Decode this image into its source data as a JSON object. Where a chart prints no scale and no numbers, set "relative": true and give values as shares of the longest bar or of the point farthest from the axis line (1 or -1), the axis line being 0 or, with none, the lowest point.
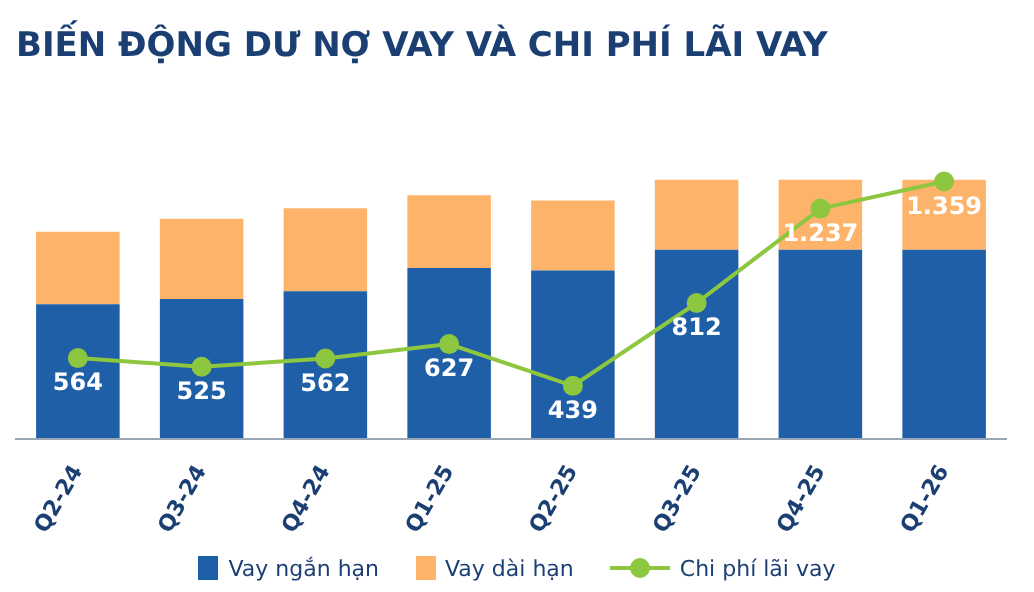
{
  "chart_data": [
    {
      "type": "bar",
      "title": "BIẾN ĐỘNG DƯ NỢ VAY VÀ CHI PHÍ LÃI VAY",
      "categories": [
        null,
        null,
        null,
        null,
        null,
        null,
        null,
        null
      ],
      "tick_labels": false,
      "stacked": true,
      "relative": true,
      "legend": "bottom",
      "series": [
        {
          "name": "Vay ngắn hạn",
          "color": "#1f5fa8",
          "values": [
            0.52,
            0.54,
            0.57,
            0.66,
            0.65,
            0.73,
            0.73,
            0.73
          ]
        },
        {
          "name": "Vay dài hạn",
          "color": "#fdb46a",
          "values": [
            0.28,
            0.31,
            0.32,
            0.28,
            0.27,
            0.27,
            0.27,
            0.27
          ]
        }
      ]
    },
    {
      "type": "line",
      "categories": [
        "Q2-24",
        "Q3-24",
        "Q4-24",
        "Q1-25",
        "Q2-25",
        "Q3-25",
        "Q4-25",
        "Q1-26"
      ],
      "tick_labels": "x",
      "legend": "bottom",
      "marker": "circle",
      "series": [
        {
          "name": "Chi phí lãi vay",
          "color": "#8dc63f",
          "values": [
            564,
            525,
            562,
            627,
            439,
            812,
            1237,
            1359
          ],
          "value_labels": [
            "564",
            "525",
            "562",
            "627",
            "439",
            "812",
            "1.237",
            "1.359"
          ]
        }
      ]
    }
  ]
}
